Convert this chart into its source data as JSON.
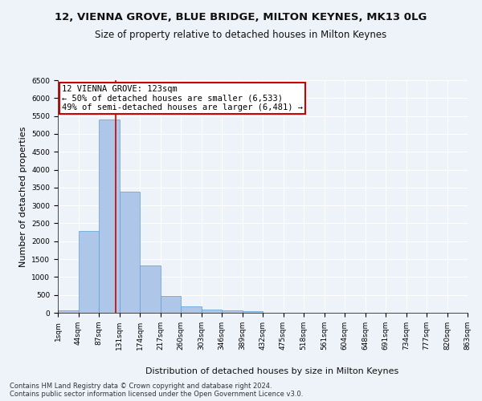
{
  "title": "12, VIENNA GROVE, BLUE BRIDGE, MILTON KEYNES, MK13 0LG",
  "subtitle": "Size of property relative to detached houses in Milton Keynes",
  "xlabel": "Distribution of detached houses by size in Milton Keynes",
  "ylabel": "Number of detached properties",
  "bar_values": [
    70,
    2280,
    5400,
    3380,
    1320,
    480,
    190,
    90,
    60,
    50,
    0,
    0,
    0,
    0,
    0,
    0,
    0,
    0,
    0,
    0
  ],
  "bar_labels": [
    "1sqm",
    "44sqm",
    "87sqm",
    "131sqm",
    "174sqm",
    "217sqm",
    "260sqm",
    "303sqm",
    "346sqm",
    "389sqm",
    "432sqm",
    "475sqm",
    "518sqm",
    "561sqm",
    "604sqm",
    "648sqm",
    "691sqm",
    "734sqm",
    "777sqm",
    "820sqm",
    "863sqm"
  ],
  "bar_color": "#aec6e8",
  "bar_edge_color": "#5a9fd4",
  "annotation_box_text": "12 VIENNA GROVE: 123sqm\n← 50% of detached houses are smaller (6,533)\n49% of semi-detached houses are larger (6,481) →",
  "annotation_box_color": "#ffffff",
  "annotation_box_edge_color": "#cc0000",
  "ylim": [
    0,
    6500
  ],
  "yticks": [
    0,
    500,
    1000,
    1500,
    2000,
    2500,
    3000,
    3500,
    4000,
    4500,
    5000,
    5500,
    6000,
    6500
  ],
  "background_color": "#eef2f9",
  "grid_color": "#ffffff",
  "footer_line1": "Contains HM Land Registry data © Crown copyright and database right 2024.",
  "footer_line2": "Contains public sector information licensed under the Open Government Licence v3.0.",
  "title_fontsize": 9.5,
  "subtitle_fontsize": 8.5,
  "axis_label_fontsize": 8,
  "tick_fontsize": 6.5,
  "footer_fontsize": 6,
  "annotation_fontsize": 7.5
}
